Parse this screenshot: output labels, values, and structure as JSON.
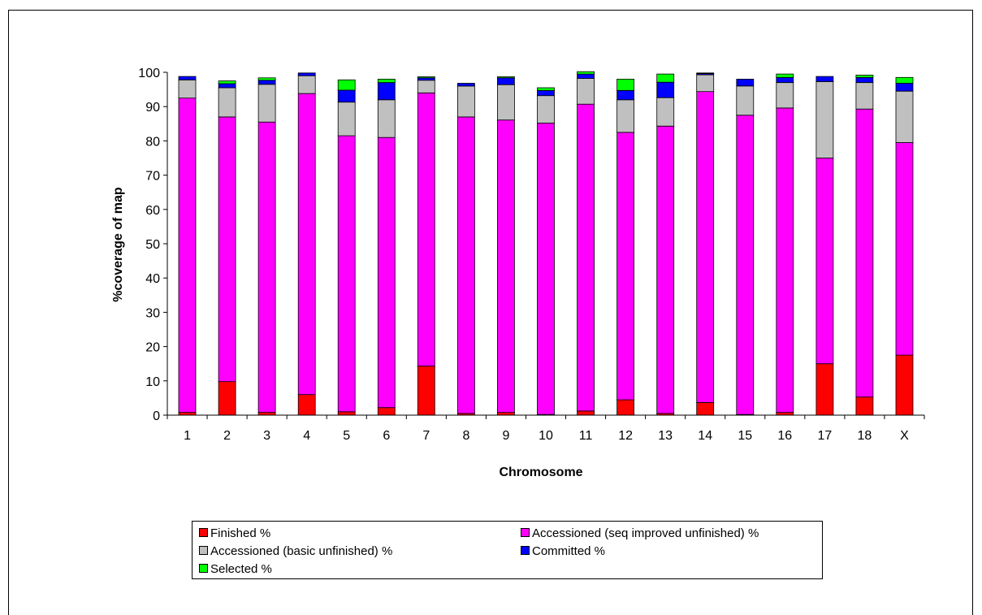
{
  "chart_data": {
    "type": "bar",
    "stacked": true,
    "title": "",
    "xlabel": "Chromosome",
    "ylabel": "%coverage of map",
    "ylim": [
      0,
      100
    ],
    "yticks": [
      0,
      10,
      20,
      30,
      40,
      50,
      60,
      70,
      80,
      90,
      100
    ],
    "grid": false,
    "legend_position": "bottom",
    "categories": [
      "1",
      "2",
      "3",
      "4",
      "5",
      "6",
      "7",
      "8",
      "9",
      "10",
      "11",
      "12",
      "13",
      "14",
      "15",
      "16",
      "17",
      "18",
      "X"
    ],
    "series": [
      {
        "name": "Finished %",
        "color": "#ff0000",
        "values": [
          0.8,
          9.8,
          0.8,
          6.0,
          1.0,
          2.2,
          14.3,
          0.5,
          0.8,
          0.2,
          1.2,
          4.5,
          0.5,
          3.7,
          0.2,
          0.8,
          15.0,
          5.3,
          17.5
        ]
      },
      {
        "name": "Accessioned (seq improved unfinished) %",
        "color": "#ff00ff",
        "values": [
          91.7,
          77.2,
          84.7,
          87.8,
          80.5,
          78.8,
          79.7,
          86.5,
          85.3,
          85.0,
          89.5,
          78.0,
          83.8,
          90.7,
          87.3,
          88.8,
          60.0,
          84.0,
          62.0
        ]
      },
      {
        "name": "Accessioned (basic unfinished) %",
        "color": "#c0c0c0",
        "values": [
          5.3,
          8.5,
          11.0,
          5.2,
          9.8,
          11.0,
          3.7,
          9.0,
          10.3,
          8.0,
          7.5,
          9.5,
          8.3,
          4.9,
          8.5,
          7.4,
          22.3,
          7.7,
          15.0
        ]
      },
      {
        "name": "Committed %",
        "color": "#0000ff",
        "values": [
          1.0,
          1.2,
          1.2,
          0.8,
          3.5,
          5.0,
          0.7,
          0.8,
          2.0,
          1.5,
          1.3,
          2.7,
          4.5,
          0.3,
          2.0,
          1.5,
          1.5,
          1.5,
          2.3
        ]
      },
      {
        "name": "Selected %",
        "color": "#00ff00",
        "values": [
          0.0,
          0.8,
          0.7,
          0.0,
          3.0,
          1.0,
          0.3,
          0.0,
          0.3,
          0.8,
          0.7,
          3.3,
          2.4,
          0.2,
          0.0,
          1.0,
          0.0,
          0.7,
          1.7
        ]
      }
    ]
  }
}
